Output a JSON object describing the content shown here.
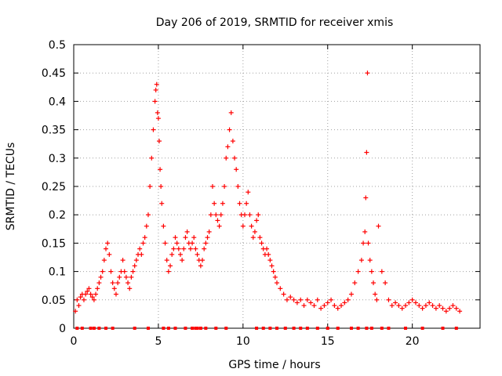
{
  "chart_data": {
    "type": "scatter",
    "title": "Day 206 of 2019, SRMTID for receiver xmis",
    "xlabel": "GPS time / hours",
    "ylabel": "SRMTID / TECUs",
    "xlim": [
      0,
      24
    ],
    "ylim": [
      0,
      0.5
    ],
    "xticks": [
      0,
      5,
      10,
      15,
      20
    ],
    "xtick_labels": [
      "0",
      "5",
      "10",
      "15",
      "20"
    ],
    "yticks": [
      0,
      0.05,
      0.1,
      0.15,
      0.2,
      0.25,
      0.3,
      0.35,
      0.4,
      0.45,
      0.5
    ],
    "ytick_labels": [
      "0",
      "0.05",
      "0.1",
      "0.15",
      "0.2",
      "0.25",
      "0.3",
      "0.35",
      "0.4",
      "0.45",
      "0.5"
    ],
    "grid": true,
    "marker": "+",
    "series": [
      {
        "name": "SRMTID",
        "color": "#ff0000",
        "x": [
          0.1,
          0.2,
          0.3,
          0.4,
          0.5,
          0.6,
          0.7,
          0.8,
          0.9,
          1.0,
          1.1,
          1.2,
          1.3,
          1.4,
          1.5,
          1.6,
          1.7,
          1.8,
          1.9,
          2.0,
          2.1,
          2.2,
          2.3,
          2.4,
          2.5,
          2.6,
          2.7,
          2.8,
          2.9,
          3.0,
          3.1,
          3.2,
          3.3,
          3.4,
          3.5,
          3.6,
          3.7,
          3.8,
          3.9,
          4.0,
          4.1,
          4.2,
          4.3,
          4.4,
          4.5,
          4.6,
          4.7,
          4.8,
          4.85,
          4.9,
          4.95,
          5.0,
          5.05,
          5.1,
          5.15,
          5.2,
          5.3,
          5.4,
          5.5,
          5.6,
          5.7,
          5.8,
          5.9,
          6.0,
          6.1,
          6.2,
          6.3,
          6.4,
          6.5,
          6.6,
          6.7,
          6.8,
          6.9,
          7.0,
          7.1,
          7.2,
          7.3,
          7.4,
          7.5,
          7.6,
          7.7,
          7.8,
          7.9,
          8.0,
          8.1,
          8.2,
          8.3,
          8.4,
          8.5,
          8.6,
          8.7,
          8.8,
          8.9,
          9.0,
          9.1,
          9.2,
          9.3,
          9.4,
          9.5,
          9.6,
          9.7,
          9.8,
          9.9,
          10.0,
          10.1,
          10.2,
          10.3,
          10.4,
          10.5,
          10.6,
          10.7,
          10.8,
          10.9,
          11.0,
          11.1,
          11.2,
          11.3,
          11.4,
          11.5,
          11.6,
          11.7,
          11.8,
          11.9,
          12.0,
          12.2,
          12.4,
          12.6,
          12.8,
          13.0,
          13.2,
          13.4,
          13.6,
          13.8,
          14.0,
          14.2,
          14.4,
          14.6,
          14.8,
          15.0,
          15.2,
          15.4,
          15.6,
          15.8,
          16.0,
          16.2,
          16.4,
          16.6,
          16.8,
          17.0,
          17.1,
          17.2,
          17.25,
          17.3,
          17.35,
          17.4,
          17.5,
          17.6,
          17.7,
          17.8,
          17.9,
          18.0,
          18.2,
          18.4,
          18.6,
          18.8,
          19.0,
          19.2,
          19.4,
          19.6,
          19.8,
          20.0,
          20.2,
          20.4,
          20.6,
          20.8,
          21.0,
          21.2,
          21.4,
          21.6,
          21.8,
          22.0,
          22.2,
          22.4,
          22.6,
          22.8
        ],
        "y": [
          0.03,
          0.05,
          0.04,
          0.055,
          0.06,
          0.05,
          0.06,
          0.065,
          0.07,
          0.06,
          0.055,
          0.05,
          0.06,
          0.07,
          0.08,
          0.09,
          0.1,
          0.12,
          0.14,
          0.15,
          0.13,
          0.1,
          0.08,
          0.07,
          0.06,
          0.08,
          0.09,
          0.1,
          0.12,
          0.1,
          0.09,
          0.08,
          0.07,
          0.09,
          0.1,
          0.11,
          0.12,
          0.13,
          0.14,
          0.13,
          0.15,
          0.16,
          0.18,
          0.2,
          0.25,
          0.3,
          0.35,
          0.4,
          0.42,
          0.43,
          0.38,
          0.37,
          0.33,
          0.28,
          0.25,
          0.22,
          0.18,
          0.15,
          0.12,
          0.1,
          0.11,
          0.13,
          0.14,
          0.16,
          0.15,
          0.14,
          0.13,
          0.12,
          0.14,
          0.16,
          0.17,
          0.15,
          0.14,
          0.15,
          0.16,
          0.14,
          0.13,
          0.12,
          0.11,
          0.12,
          0.14,
          0.15,
          0.16,
          0.17,
          0.2,
          0.25,
          0.22,
          0.2,
          0.19,
          0.18,
          0.2,
          0.22,
          0.25,
          0.3,
          0.32,
          0.35,
          0.38,
          0.33,
          0.3,
          0.28,
          0.25,
          0.22,
          0.2,
          0.18,
          0.2,
          0.22,
          0.24,
          0.2,
          0.18,
          0.16,
          0.17,
          0.19,
          0.2,
          0.16,
          0.15,
          0.14,
          0.13,
          0.14,
          0.13,
          0.12,
          0.11,
          0.1,
          0.09,
          0.08,
          0.07,
          0.06,
          0.05,
          0.055,
          0.05,
          0.045,
          0.05,
          0.04,
          0.05,
          0.045,
          0.04,
          0.05,
          0.035,
          0.04,
          0.045,
          0.05,
          0.04,
          0.035,
          0.04,
          0.045,
          0.05,
          0.06,
          0.08,
          0.1,
          0.12,
          0.15,
          0.17,
          0.23,
          0.31,
          0.45,
          0.15,
          0.12,
          0.1,
          0.08,
          0.06,
          0.05,
          0.18,
          0.1,
          0.08,
          0.05,
          0.04,
          0.045,
          0.04,
          0.035,
          0.04,
          0.045,
          0.05,
          0.045,
          0.04,
          0.035,
          0.04,
          0.045,
          0.04,
          0.035,
          0.04,
          0.035,
          0.03,
          0.035,
          0.04,
          0.035,
          0.03
        ],
        "zero_markers_x": [
          0.2,
          0.5,
          1.0,
          1.2,
          1.5,
          1.9,
          2.3,
          3.6,
          4.4,
          5.3,
          5.6,
          6.0,
          6.6,
          7.0,
          7.2,
          7.3,
          7.5,
          7.8,
          8.4,
          9.0,
          10.8,
          11.2,
          11.6,
          12.0,
          12.5,
          13.0,
          13.4,
          13.8,
          14.4,
          15.0,
          15.6,
          16.4,
          16.8,
          17.3,
          17.6,
          18.2,
          18.6,
          19.6,
          20.6,
          21.8,
          22.6
        ]
      }
    ]
  }
}
